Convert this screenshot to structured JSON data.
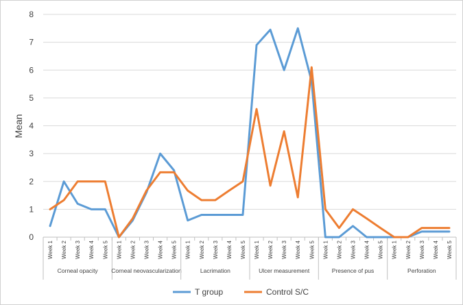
{
  "chart_data": {
    "type": "line",
    "title": "",
    "xlabel": "",
    "ylabel": "Mean",
    "ylim": [
      0,
      8
    ],
    "yticks": [
      "0",
      "1",
      "2",
      "3",
      "4",
      "5",
      "6",
      "7",
      "8"
    ],
    "grid": true,
    "legend_position": "bottom",
    "groups": [
      {
        "name": "Corneal opacity",
        "weeks": [
          "Week 1",
          "Week 2",
          "Week 3",
          "Week 4",
          "Week 5"
        ]
      },
      {
        "name": "Corneal neovascularization",
        "weeks": [
          "Week 1",
          "Week 2",
          "Week 3",
          "Week 4",
          "Week 5"
        ]
      },
      {
        "name": "Lacrimation",
        "weeks": [
          "Week 1",
          "Week 2",
          "Week 3",
          "Week 4",
          "Week 5"
        ]
      },
      {
        "name": "Ulcer measurement",
        "weeks": [
          "Week 1",
          "Week 2",
          "Week 3",
          "Week 4",
          "Week 5"
        ]
      },
      {
        "name": "Presence of pus",
        "weeks": [
          "Week 1",
          "Week 2",
          "Week 3",
          "Week 4",
          "Week 5"
        ]
      },
      {
        "name": "Perforation",
        "weeks": [
          "Week 1",
          "Week 2",
          "Week 3",
          "Week 4",
          "Week 5"
        ]
      }
    ],
    "series": [
      {
        "name": "T group",
        "color": "#5B9BD5",
        "values": [
          0.4,
          2.0,
          1.2,
          1.0,
          1.0,
          0.0,
          0.6,
          1.6,
          3.0,
          2.4,
          0.6,
          0.8,
          0.8,
          0.8,
          0.8,
          6.9,
          7.45,
          6.0,
          7.5,
          5.6,
          0.0,
          0.0,
          0.4,
          0.0,
          0.0,
          0.0,
          0.0,
          0.2,
          0.2,
          0.2
        ]
      },
      {
        "name": "Control S/C",
        "color": "#ED7D31",
        "values": [
          1.0,
          1.33,
          2.0,
          2.0,
          2.0,
          0.0,
          0.67,
          1.67,
          2.33,
          2.33,
          1.67,
          1.33,
          1.33,
          1.67,
          2.0,
          4.6,
          1.85,
          3.8,
          1.43,
          6.1,
          1.0,
          0.33,
          1.0,
          0.67,
          0.33,
          0.0,
          0.0,
          0.33,
          0.33,
          0.33
        ]
      }
    ]
  }
}
